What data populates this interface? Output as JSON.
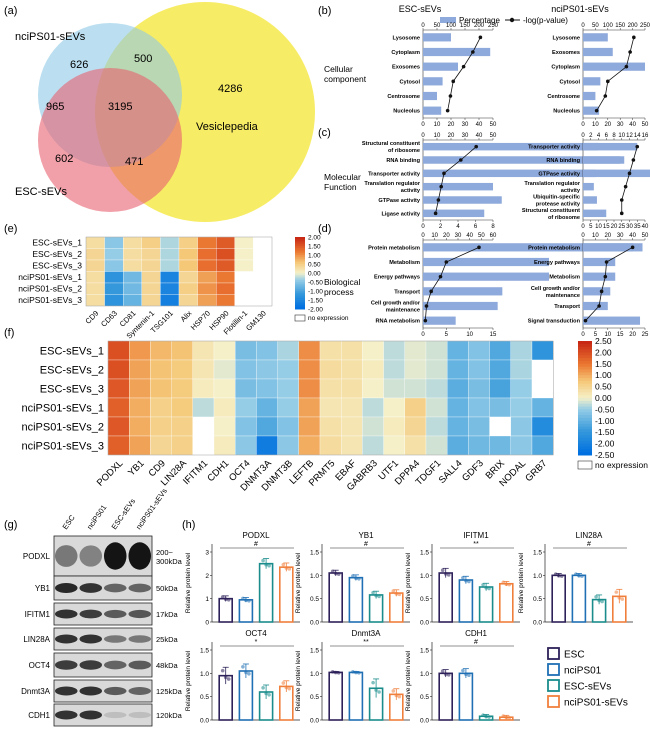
{
  "panel_labels": {
    "a": "(a)",
    "b": "(b)",
    "c": "(c)",
    "d": "(d)",
    "e": "(e)",
    "f": "(f)",
    "g": "(g)",
    "h": "(h)"
  },
  "venn": {
    "set_labels": {
      "nci": "nciPS01-sEVs",
      "esc": "ESC-sEVs",
      "vesicle": "Vesiclepedia"
    },
    "counts": {
      "nci_only": "626",
      "nci_vesicle": "500",
      "nci_esc": "965",
      "all": "3195",
      "vesicle_only": "4286",
      "esc_only": "602",
      "esc_vesicle": "471"
    },
    "colors": {
      "nci": "#8ecae6",
      "esc": "#e8606f",
      "vesicle": "#f6e94a"
    }
  },
  "go": {
    "columns": [
      "ESC-sEVs",
      "nciPS01-sEVs"
    ],
    "legend": {
      "bar": "Percentage",
      "line": "-log(p-value)"
    },
    "bar_color": "#8ea9db",
    "line_color": "#111111",
    "panels": [
      {
        "category": "Cellular component",
        "esc": {
          "terms": [
            "Lysosome",
            "Cytoplasm",
            "Exosomes",
            "Cytosol",
            "Centrosome",
            "Nucleolus"
          ],
          "pct": [
            20,
            48,
            25,
            14,
            10,
            13
          ],
          "logp": [
            205,
            178,
            145,
            108,
            98,
            88
          ],
          "top_axis": {
            "ticks": [
              0,
              50,
              100,
              150,
              200,
              250
            ]
          },
          "bottom_axis": {
            "ticks": [
              0,
              10,
              20,
              30,
              40,
              50
            ]
          }
        },
        "nci": {
          "terms": [
            "Lysosome",
            "Exosomes",
            "Cytoplasm",
            "Cytosol",
            "Centrosome",
            "Nucleolus"
          ],
          "pct": [
            20,
            24,
            50,
            14,
            10,
            13
          ],
          "logp": [
            205,
            190,
            175,
            100,
            90,
            55
          ],
          "top_axis": {
            "ticks": [
              0,
              50,
              100,
              150,
              200,
              250
            ]
          },
          "bottom_axis": {
            "ticks": [
              0,
              10,
              20,
              30,
              40,
              50
            ]
          }
        }
      },
      {
        "category": "Molecular Function",
        "esc": {
          "terms": [
            "Structural constituent of ribosome",
            "RNA binding",
            "Transporter activity",
            "Translation regulator activity",
            "GTPase activity",
            "Ligase activity"
          ],
          "pct": [
            20,
            23,
            34,
            8,
            9,
            7
          ],
          "logp": [
            38,
            27,
            15,
            13,
            11,
            9
          ],
          "top_axis": {
            "ticks": [
              0,
              10,
              20,
              30,
              40,
              50
            ]
          },
          "bottom_axis": {
            "ticks": [
              0,
              2,
              4,
              6,
              8
            ]
          }
        },
        "nci": {
          "terms": [
            "Transporter activity",
            "RNA binding",
            "GTPase activity",
            "Translation regulator activity",
            "Ubiquitin-specific protease activity",
            "Structural constituent of ribosome"
          ],
          "pct": [
            35,
            24,
            8,
            7,
            9,
            15
          ],
          "logp": [
            14,
            13,
            12,
            11,
            10,
            10
          ],
          "top_axis": {
            "ticks": [
              0,
              2,
              4,
              6,
              8,
              10,
              12,
              14,
              16
            ]
          },
          "bottom_axis": {
            "ticks": [
              0,
              5,
              10,
              15,
              20,
              25,
              30,
              35,
              40
            ]
          }
        }
      },
      {
        "category": "Biological process",
        "esc": {
          "terms": [
            "Protein metabolism",
            "Metabolism",
            "Energy pathways",
            "Transport",
            "Cell growth and/or maintenance",
            "RNA metabolism"
          ],
          "pct": [
            45,
            27,
            27,
            17,
            16,
            7
          ],
          "logp": [
            48,
            20,
            15,
            7,
            3,
            2
          ],
          "top_axis": {
            "ticks": [
              0,
              10,
              20,
              30,
              40,
              50,
              60
            ]
          },
          "bottom_axis": {
            "ticks": [
              0,
              5,
              10,
              15
            ]
          }
        },
        "nci": {
          "terms": [
            "Protein metabolism",
            "Energy pathways",
            "Metabolism",
            "Cell growth and/or maintenance",
            "Transport",
            "Signal transduction"
          ],
          "pct": [
            24,
            13,
            13,
            11,
            10,
            23
          ],
          "logp": [
            40,
            19,
            18,
            15,
            13,
            2
          ],
          "top_axis": {
            "ticks": [
              0,
              10,
              20,
              30,
              40,
              50
            ]
          },
          "bottom_axis": {
            "ticks": [
              0,
              5,
              10,
              15,
              20,
              25
            ]
          }
        }
      }
    ]
  },
  "heatmap_e": {
    "rows": [
      "ESC-sEVs_1",
      "ESC-sEVs_2",
      "ESC-sEVs_3",
      "nciPS01-sEVs_1",
      "nciPS01-sEVs_2",
      "nciPS01-sEVs_3"
    ],
    "cols": [
      "CD9",
      "CD63",
      "CD81",
      "Syntenin-1",
      "TSG101",
      "Alix",
      "HSP70",
      "HSP90",
      "Flotillin-1",
      "GM130"
    ],
    "values": [
      [
        0.3,
        -0.5,
        0.3,
        0.5,
        -0.3,
        0.5,
        1.2,
        1.5,
        0.0,
        null
      ],
      [
        0.4,
        -0.4,
        0.3,
        0.4,
        -0.3,
        0.6,
        1.3,
        1.6,
        0.0,
        null
      ],
      [
        0.4,
        -0.5,
        0.3,
        0.4,
        -0.3,
        0.6,
        1.3,
        1.5,
        0.0,
        null
      ],
      [
        0.3,
        -1.3,
        -0.7,
        0.4,
        -1.6,
        0.4,
        0.9,
        1.2,
        null,
        null
      ],
      [
        0.3,
        -1.2,
        -0.7,
        0.4,
        -1.6,
        0.5,
        1.0,
        1.3,
        null,
        null
      ],
      [
        0.3,
        -1.3,
        -0.8,
        0.4,
        -1.7,
        0.4,
        0.9,
        1.2,
        null,
        null
      ]
    ],
    "scale": {
      "min": -2,
      "max": 2,
      "ticks": [
        "2.00",
        "1.50",
        "1.00",
        "0.50",
        "0.00",
        "-0.50",
        "-1.00",
        "-1.50",
        "-2.00"
      ]
    },
    "no_expression": "no expression"
  },
  "heatmap_f": {
    "rows": [
      "ESC-sEVs_1",
      "ESC-sEVs_2",
      "ESC-sEVs_3",
      "nciPS01-sEVs_1",
      "nciPS01-sEVs_2",
      "nciPS01-sEVs_3"
    ],
    "cols": [
      "PODXL",
      "YB1",
      "CD9",
      "LIN28A",
      "IFITM1",
      "CDH1",
      "OCT4",
      "DNMT3A",
      "DNMT3B",
      "LEFTB",
      "PRMT5",
      "EBAF",
      "GABRB3",
      "UTF1",
      "DPPA4",
      "TDGF1",
      "SALL4",
      "GDF3",
      "BRIX",
      "NODAL",
      "GRB7"
    ],
    "values": [
      [
        2.0,
        1.2,
        0.9,
        0.8,
        0.2,
        0.0,
        -0.8,
        -0.7,
        -0.4,
        1.3,
        0.3,
        0.3,
        0.0,
        -0.3,
        -0.1,
        -0.2,
        -1.0,
        -0.7,
        -1.2,
        -0.4,
        -1.6
      ],
      [
        2.0,
        1.1,
        0.8,
        0.7,
        0.2,
        -0.1,
        -0.7,
        -0.6,
        -0.5,
        1.3,
        0.4,
        0.3,
        0.1,
        -0.3,
        -0.1,
        -0.2,
        -1.0,
        -0.7,
        -1.2,
        -0.4,
        null
      ],
      [
        1.9,
        1.1,
        0.8,
        0.7,
        0.1,
        0.0,
        -0.8,
        -0.7,
        -0.5,
        1.3,
        0.3,
        0.3,
        0.0,
        -0.2,
        -0.2,
        -0.3,
        -1.1,
        -0.8,
        -1.3,
        -0.5,
        null
      ],
      [
        1.8,
        1.0,
        0.6,
        0.7,
        -0.3,
        0.1,
        -0.5,
        -1.0,
        -0.5,
        1.1,
        0.2,
        0.2,
        -0.3,
        0.0,
        0.6,
        -0.2,
        -1.0,
        -0.7,
        -0.8,
        -0.5,
        -1.0
      ],
      [
        1.9,
        1.0,
        0.6,
        0.6,
        null,
        0.0,
        -0.7,
        -1.2,
        -0.7,
        1.1,
        0.3,
        0.2,
        -0.2,
        0.1,
        0.5,
        -0.3,
        -1.0,
        -0.8,
        null,
        -0.6,
        -1.8
      ],
      [
        1.8,
        1.1,
        0.5,
        0.6,
        null,
        0.1,
        -0.6,
        -2.2,
        -0.6,
        1.0,
        0.4,
        0.2,
        -0.3,
        0.0,
        0.3,
        -0.2,
        -1.1,
        -0.9,
        -0.9,
        -0.6,
        -1.2
      ]
    ],
    "scale": {
      "min": -2.5,
      "max": 2.5,
      "ticks": [
        "2.50",
        "2.00",
        "1.50",
        "1.00",
        "0.50",
        "0.00",
        "-0.50",
        "-1.00",
        "-1.50",
        "-2.00",
        "-2.50"
      ]
    },
    "no_expression": "no expression"
  },
  "western": {
    "lanes": [
      "ESC",
      "nciPS01",
      "ESC-sEVs",
      "nciPS01-sEVs"
    ],
    "proteins": [
      {
        "name": "PODXL",
        "size": "200~\n300kDa",
        "intensity": [
          0.45,
          0.4,
          0.95,
          0.95
        ]
      },
      {
        "name": "YB1",
        "size": "50kDa",
        "intensity": [
          0.85,
          0.8,
          0.55,
          0.55
        ]
      },
      {
        "name": "IFITM1",
        "size": "17kDa",
        "intensity": [
          0.8,
          0.75,
          0.6,
          0.62
        ]
      },
      {
        "name": "LIN28A",
        "size": "25kDa",
        "intensity": [
          0.8,
          0.8,
          0.45,
          0.45
        ]
      },
      {
        "name": "OCT4",
        "size": "48kDa",
        "intensity": [
          0.75,
          0.75,
          0.55,
          0.6
        ]
      },
      {
        "name": "Dnmt3A",
        "size": "125kDa",
        "intensity": [
          0.8,
          0.8,
          0.6,
          0.55
        ]
      },
      {
        "name": "CDH1",
        "size": "120kDa",
        "intensity": [
          0.8,
          0.8,
          0.1,
          0.1
        ]
      }
    ]
  },
  "bars_h": {
    "ylabel": "Relative protein level",
    "legend": [
      "ESC",
      "nciPS01",
      "ESC-sEVs",
      "nciPS01-sEVs"
    ],
    "colors": [
      "#2e2159",
      "#1f6fb4",
      "#1a8c8c",
      "#f07f3c"
    ],
    "fills": [
      "#ffffff",
      "#ffffff",
      "#ffffff",
      "#ffffff"
    ],
    "charts": [
      {
        "title": "PODXL",
        "sig": "#",
        "values": [
          1.0,
          0.95,
          2.5,
          2.35
        ],
        "errors": [
          0.12,
          0.1,
          0.22,
          0.18
        ],
        "ymax": 3,
        "yticks": [
          0,
          1,
          2,
          3
        ]
      },
      {
        "title": "YB1",
        "sig": "#",
        "values": [
          1.05,
          0.95,
          0.58,
          0.62
        ],
        "errors": [
          0.06,
          0.06,
          0.08,
          0.07
        ],
        "ymax": 1.5,
        "yticks": [
          0.0,
          0.5,
          1.0,
          1.5
        ]
      },
      {
        "title": "IFITM1",
        "sig": "**",
        "values": [
          1.05,
          0.9,
          0.75,
          0.82
        ],
        "errors": [
          0.1,
          0.08,
          0.08,
          0.05
        ],
        "ymax": 1.5,
        "yticks": [
          0.0,
          0.5,
          1.0,
          1.5
        ]
      },
      {
        "title": "LIN28A",
        "sig": "#",
        "values": [
          1.0,
          1.0,
          0.48,
          0.55
        ],
        "errors": [
          0.04,
          0.04,
          0.1,
          0.15
        ],
        "ymax": 1.5,
        "yticks": [
          0.0,
          0.5,
          1.0,
          1.5
        ]
      },
      {
        "title": "OCT4",
        "sig": "*",
        "values": [
          0.95,
          1.05,
          0.6,
          0.72
        ],
        "errors": [
          0.18,
          0.15,
          0.15,
          0.12
        ],
        "ymax": 1.5,
        "yticks": [
          0.0,
          0.5,
          1.0,
          1.5
        ]
      },
      {
        "title": "Dnmt3A",
        "sig": "**",
        "values": [
          1.02,
          1.02,
          0.68,
          0.55
        ],
        "errors": [
          0.02,
          0.02,
          0.2,
          0.12
        ],
        "ymax": 1.5,
        "yticks": [
          0.0,
          0.5,
          1.0,
          1.5
        ]
      },
      {
        "title": "CDH1",
        "sig": "#",
        "values": [
          1.0,
          1.0,
          0.08,
          0.06
        ],
        "errors": [
          0.08,
          0.1,
          0.04,
          0.04
        ],
        "ymax": 1.5,
        "yticks": [
          0.0,
          0.5,
          1.0,
          1.5
        ]
      }
    ]
  }
}
